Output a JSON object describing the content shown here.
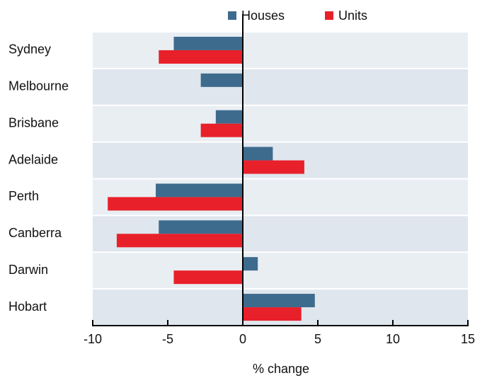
{
  "chart_data": {
    "type": "bar",
    "orientation": "horizontal",
    "categories": [
      "Sydney",
      "Melbourne",
      "Brisbane",
      "Adelaide",
      "Perth",
      "Canberra",
      "Darwin",
      "Hobart"
    ],
    "series": [
      {
        "name": "Houses",
        "color": "#3d6b8e",
        "values": [
          -4.6,
          -2.8,
          -1.8,
          2.0,
          -5.8,
          -5.6,
          1.0,
          4.8
        ]
      },
      {
        "name": "Units",
        "color": "#e8202a",
        "values": [
          -5.6,
          0,
          -2.8,
          4.1,
          -9.0,
          -8.4,
          -4.6,
          3.9
        ]
      }
    ],
    "xlabel": "% change",
    "xlim": [
      -10,
      15
    ],
    "xticks": [
      -10,
      -5,
      0,
      5,
      10,
      15
    ],
    "legend": "top"
  }
}
